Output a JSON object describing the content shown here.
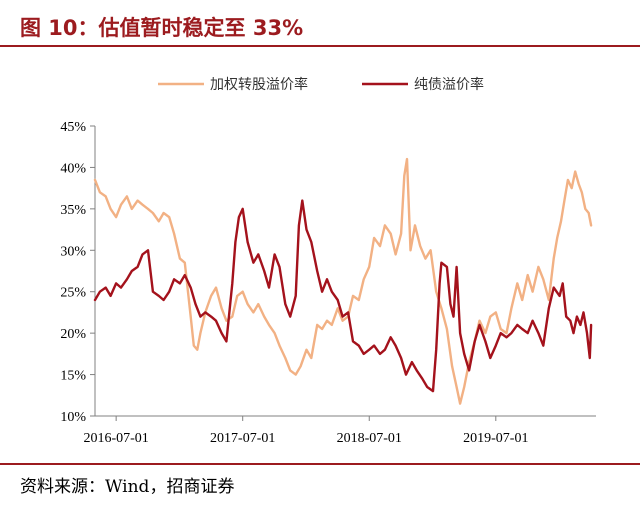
{
  "figure": {
    "title": "图 10：估值暂时稳定至 33%",
    "source": "资料来源：Wind，招商证券"
  },
  "colors": {
    "accent": "#9c1b1f",
    "conversion_premium": "#f2b184",
    "pure_bond_premium": "#a4121c",
    "axis": "#808080"
  },
  "chart_data": {
    "type": "line",
    "title": "",
    "xlabel": "",
    "ylabel": "",
    "x_range": [
      "2016-05-01",
      "2020-04-15"
    ],
    "x_ticks": [
      "2016-07-01",
      "2017-07-01",
      "2018-07-01",
      "2019-07-01"
    ],
    "ylim": [
      10,
      45
    ],
    "y_ticks": [
      "10%",
      "15%",
      "20%",
      "25%",
      "30%",
      "35%",
      "40%",
      "45%"
    ],
    "y_unit": "%",
    "legend": {
      "placement": "top-center"
    },
    "grid": false,
    "series": [
      {
        "name": "加权转股溢价率",
        "color": "#f2b184",
        "points": [
          [
            "2016-05-01",
            38.5
          ],
          [
            "2016-05-15",
            37.0
          ],
          [
            "2016-06-01",
            36.5
          ],
          [
            "2016-06-15",
            35.0
          ],
          [
            "2016-07-01",
            34.0
          ],
          [
            "2016-07-15",
            35.5
          ],
          [
            "2016-08-01",
            36.5
          ],
          [
            "2016-08-15",
            35.0
          ],
          [
            "2016-09-01",
            36.0
          ],
          [
            "2016-09-15",
            35.5
          ],
          [
            "2016-10-01",
            35.0
          ],
          [
            "2016-10-15",
            34.5
          ],
          [
            "2016-11-01",
            33.5
          ],
          [
            "2016-11-15",
            34.5
          ],
          [
            "2016-12-01",
            34.0
          ],
          [
            "2016-12-15",
            32.0
          ],
          [
            "2017-01-01",
            29.0
          ],
          [
            "2017-01-15",
            28.5
          ],
          [
            "2017-02-01",
            22.0
          ],
          [
            "2017-02-10",
            18.5
          ],
          [
            "2017-02-20",
            18.0
          ],
          [
            "2017-03-01",
            20.0
          ],
          [
            "2017-03-15",
            22.5
          ],
          [
            "2017-04-01",
            24.5
          ],
          [
            "2017-04-15",
            25.5
          ],
          [
            "2017-05-01",
            23.0
          ],
          [
            "2017-05-15",
            21.5
          ],
          [
            "2017-06-01",
            22.0
          ],
          [
            "2017-06-15",
            24.5
          ],
          [
            "2017-07-01",
            25.0
          ],
          [
            "2017-07-15",
            23.5
          ],
          [
            "2017-08-01",
            22.5
          ],
          [
            "2017-08-15",
            23.5
          ],
          [
            "2017-09-01",
            22.0
          ],
          [
            "2017-09-15",
            21.0
          ],
          [
            "2017-10-01",
            20.0
          ],
          [
            "2017-10-15",
            18.5
          ],
          [
            "2017-11-01",
            17.0
          ],
          [
            "2017-11-15",
            15.5
          ],
          [
            "2017-12-01",
            15.0
          ],
          [
            "2017-12-15",
            16.0
          ],
          [
            "2018-01-01",
            18.0
          ],
          [
            "2018-01-15",
            17.0
          ],
          [
            "2018-02-01",
            21.0
          ],
          [
            "2018-02-15",
            20.5
          ],
          [
            "2018-03-01",
            21.5
          ],
          [
            "2018-03-15",
            21.0
          ],
          [
            "2018-04-01",
            23.0
          ],
          [
            "2018-04-15",
            21.5
          ],
          [
            "2018-05-01",
            22.0
          ],
          [
            "2018-05-15",
            24.5
          ],
          [
            "2018-06-01",
            24.0
          ],
          [
            "2018-06-15",
            26.5
          ],
          [
            "2018-07-01",
            28.0
          ],
          [
            "2018-07-15",
            31.5
          ],
          [
            "2018-08-01",
            30.5
          ],
          [
            "2018-08-15",
            33.0
          ],
          [
            "2018-09-01",
            32.0
          ],
          [
            "2018-09-15",
            29.5
          ],
          [
            "2018-10-01",
            32.0
          ],
          [
            "2018-10-10",
            39.0
          ],
          [
            "2018-10-18",
            41.0
          ],
          [
            "2018-10-28",
            30.0
          ],
          [
            "2018-11-10",
            33.0
          ],
          [
            "2018-11-25",
            30.5
          ],
          [
            "2018-12-10",
            29.0
          ],
          [
            "2018-12-25",
            30.0
          ],
          [
            "2019-01-10",
            25.0
          ],
          [
            "2019-01-25",
            23.0
          ],
          [
            "2019-02-10",
            20.5
          ],
          [
            "2019-02-25",
            16.0
          ],
          [
            "2019-03-10",
            13.5
          ],
          [
            "2019-03-20",
            11.5
          ],
          [
            "2019-04-01",
            13.5
          ],
          [
            "2019-04-15",
            16.5
          ],
          [
            "2019-05-01",
            19.0
          ],
          [
            "2019-05-15",
            21.5
          ],
          [
            "2019-06-01",
            20.0
          ],
          [
            "2019-06-15",
            22.0
          ],
          [
            "2019-07-01",
            22.5
          ],
          [
            "2019-07-15",
            20.5
          ],
          [
            "2019-08-01",
            20.0
          ],
          [
            "2019-08-15",
            23.0
          ],
          [
            "2019-09-01",
            26.0
          ],
          [
            "2019-09-15",
            24.0
          ],
          [
            "2019-10-01",
            27.0
          ],
          [
            "2019-10-15",
            25.0
          ],
          [
            "2019-11-01",
            28.0
          ],
          [
            "2019-11-15",
            26.5
          ],
          [
            "2019-12-01",
            24.0
          ],
          [
            "2019-12-15",
            29.0
          ],
          [
            "2019-12-25",
            31.5
          ],
          [
            "2020-01-05",
            33.5
          ],
          [
            "2020-01-15",
            36.0
          ],
          [
            "2020-01-25",
            38.5
          ],
          [
            "2020-02-05",
            37.5
          ],
          [
            "2020-02-15",
            39.5
          ],
          [
            "2020-02-25",
            38.0
          ],
          [
            "2020-03-05",
            37.0
          ],
          [
            "2020-03-15",
            35.0
          ],
          [
            "2020-03-25",
            34.5
          ],
          [
            "2020-04-01",
            33.0
          ]
        ]
      },
      {
        "name": "纯债溢价率",
        "color": "#a4121c",
        "points": [
          [
            "2016-05-01",
            24.0
          ],
          [
            "2016-05-15",
            25.0
          ],
          [
            "2016-06-01",
            25.5
          ],
          [
            "2016-06-15",
            24.5
          ],
          [
            "2016-07-01",
            26.0
          ],
          [
            "2016-07-15",
            25.5
          ],
          [
            "2016-08-01",
            26.5
          ],
          [
            "2016-08-15",
            27.5
          ],
          [
            "2016-09-01",
            28.0
          ],
          [
            "2016-09-15",
            29.5
          ],
          [
            "2016-10-01",
            30.0
          ],
          [
            "2016-10-15",
            25.0
          ],
          [
            "2016-11-01",
            24.5
          ],
          [
            "2016-11-15",
            24.0
          ],
          [
            "2016-12-01",
            25.0
          ],
          [
            "2016-12-15",
            26.5
          ],
          [
            "2017-01-01",
            26.0
          ],
          [
            "2017-01-15",
            27.0
          ],
          [
            "2017-02-01",
            25.5
          ],
          [
            "2017-02-15",
            23.5
          ],
          [
            "2017-03-01",
            22.0
          ],
          [
            "2017-03-15",
            22.5
          ],
          [
            "2017-04-01",
            22.0
          ],
          [
            "2017-04-15",
            21.5
          ],
          [
            "2017-05-01",
            20.0
          ],
          [
            "2017-05-15",
            19.0
          ],
          [
            "2017-06-01",
            26.0
          ],
          [
            "2017-06-10",
            31.0
          ],
          [
            "2017-06-20",
            34.0
          ],
          [
            "2017-07-01",
            35.0
          ],
          [
            "2017-07-15",
            31.0
          ],
          [
            "2017-08-01",
            28.5
          ],
          [
            "2017-08-15",
            29.5
          ],
          [
            "2017-09-01",
            27.5
          ],
          [
            "2017-09-15",
            25.5
          ],
          [
            "2017-10-01",
            29.5
          ],
          [
            "2017-10-15",
            28.0
          ],
          [
            "2017-11-01",
            23.5
          ],
          [
            "2017-11-15",
            22.0
          ],
          [
            "2017-12-01",
            24.5
          ],
          [
            "2017-12-10",
            33.0
          ],
          [
            "2017-12-20",
            36.0
          ],
          [
            "2018-01-01",
            32.5
          ],
          [
            "2018-01-15",
            31.0
          ],
          [
            "2018-02-01",
            27.5
          ],
          [
            "2018-02-15",
            25.0
          ],
          [
            "2018-03-01",
            26.5
          ],
          [
            "2018-03-15",
            25.0
          ],
          [
            "2018-04-01",
            24.0
          ],
          [
            "2018-04-15",
            22.0
          ],
          [
            "2018-05-01",
            22.5
          ],
          [
            "2018-05-15",
            19.0
          ],
          [
            "2018-06-01",
            18.5
          ],
          [
            "2018-06-15",
            17.5
          ],
          [
            "2018-07-01",
            18.0
          ],
          [
            "2018-07-15",
            18.5
          ],
          [
            "2018-08-01",
            17.5
          ],
          [
            "2018-08-15",
            18.0
          ],
          [
            "2018-09-01",
            19.5
          ],
          [
            "2018-09-15",
            18.5
          ],
          [
            "2018-10-01",
            17.0
          ],
          [
            "2018-10-15",
            15.0
          ],
          [
            "2018-11-01",
            16.5
          ],
          [
            "2018-11-15",
            15.5
          ],
          [
            "2018-12-01",
            14.5
          ],
          [
            "2018-12-15",
            13.5
          ],
          [
            "2019-01-01",
            13.0
          ],
          [
            "2019-01-10",
            18.0
          ],
          [
            "2019-01-20",
            26.0
          ],
          [
            "2019-01-25",
            28.5
          ],
          [
            "2019-02-10",
            28.0
          ],
          [
            "2019-02-20",
            23.5
          ],
          [
            "2019-03-01",
            22.0
          ],
          [
            "2019-03-10",
            28.0
          ],
          [
            "2019-03-20",
            20.0
          ],
          [
            "2019-04-01",
            17.5
          ],
          [
            "2019-04-15",
            15.5
          ],
          [
            "2019-05-01",
            19.0
          ],
          [
            "2019-05-15",
            21.0
          ],
          [
            "2019-06-01",
            19.0
          ],
          [
            "2019-06-15",
            17.0
          ],
          [
            "2019-07-01",
            18.5
          ],
          [
            "2019-07-15",
            20.0
          ],
          [
            "2019-08-01",
            19.5
          ],
          [
            "2019-08-15",
            20.0
          ],
          [
            "2019-09-01",
            21.0
          ],
          [
            "2019-09-15",
            20.5
          ],
          [
            "2019-10-01",
            20.0
          ],
          [
            "2019-10-15",
            21.5
          ],
          [
            "2019-11-01",
            20.0
          ],
          [
            "2019-11-15",
            18.5
          ],
          [
            "2019-12-01",
            23.0
          ],
          [
            "2019-12-15",
            25.5
          ],
          [
            "2020-01-01",
            24.5
          ],
          [
            "2020-01-10",
            26.0
          ],
          [
            "2020-01-20",
            22.0
          ],
          [
            "2020-02-01",
            21.5
          ],
          [
            "2020-02-10",
            20.0
          ],
          [
            "2020-02-20",
            22.0
          ],
          [
            "2020-03-01",
            21.0
          ],
          [
            "2020-03-10",
            22.5
          ],
          [
            "2020-03-20",
            20.0
          ],
          [
            "2020-03-28",
            17.0
          ],
          [
            "2020-04-01",
            21.0
          ]
        ]
      }
    ]
  }
}
